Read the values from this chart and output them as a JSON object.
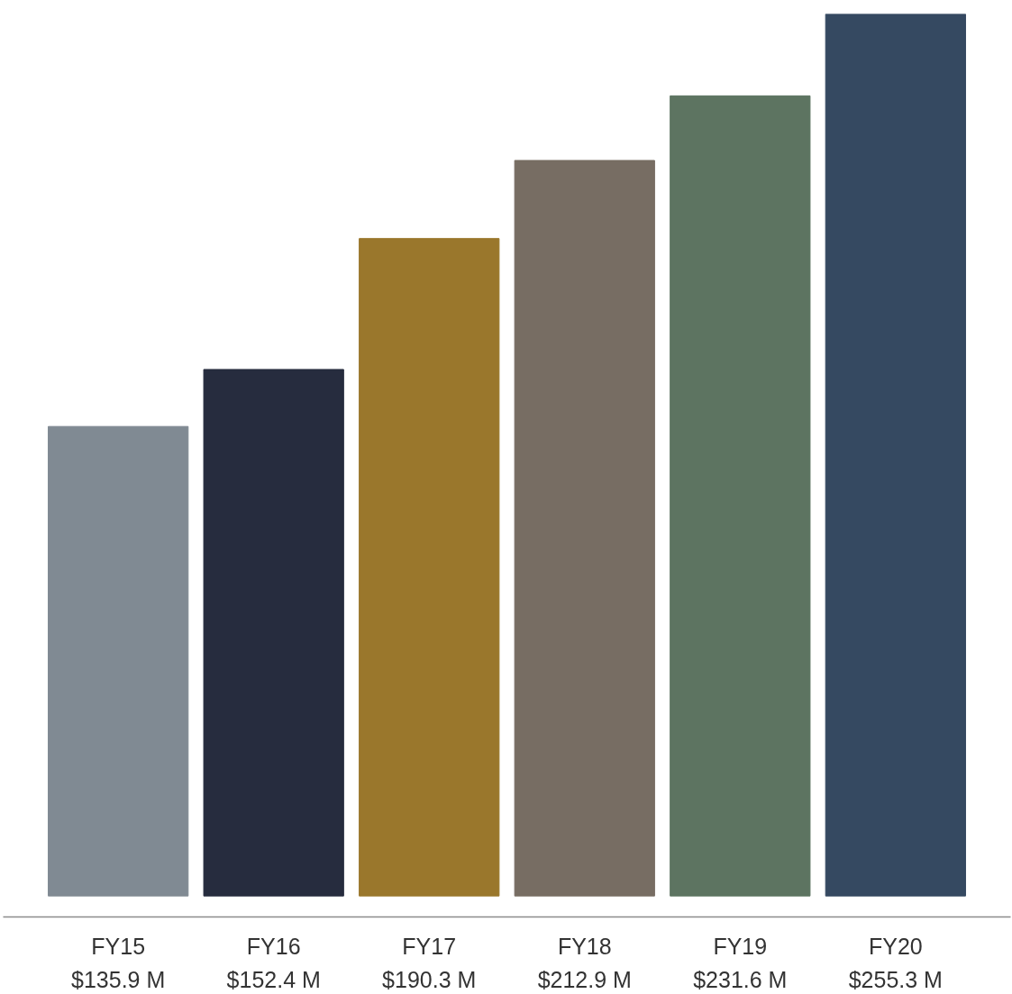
{
  "chart_data": {
    "type": "bar",
    "categories": [
      "FY15",
      "FY16",
      "FY17",
      "FY18",
      "FY19",
      "FY20"
    ],
    "values": [
      135.9,
      152.4,
      190.3,
      212.9,
      231.6,
      255.3
    ],
    "value_labels": [
      "$135.9 M",
      "$152.4 M",
      "$190.3 M",
      "$212.9 M",
      "$231.6 M",
      "$255.3 M"
    ],
    "colors": [
      "#808a93",
      "#262c3e",
      "#9a772c",
      "#776d63",
      "#5d7461",
      "#354961"
    ],
    "grid": false
  }
}
